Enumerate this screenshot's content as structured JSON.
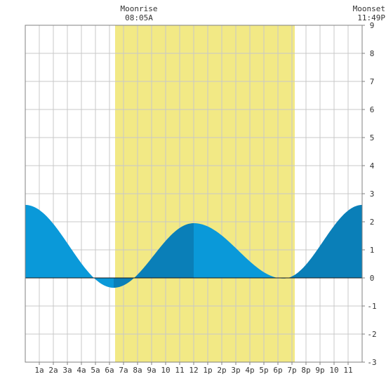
{
  "chart_data": {
    "type": "area",
    "unit_note": "y values in feet (tide height), x in hours after midnight",
    "ylim": [
      -3,
      9
    ],
    "yticks": [
      "9",
      "8",
      "7",
      "6",
      "5",
      "4",
      "3",
      "2",
      "1",
      "0",
      "-1",
      "-2",
      "-3"
    ],
    "xlim": [
      0,
      24
    ],
    "xticks": [
      {
        "hour": 1,
        "label": "1a"
      },
      {
        "hour": 2,
        "label": "2a"
      },
      {
        "hour": 3,
        "label": "3a"
      },
      {
        "hour": 4,
        "label": "4a"
      },
      {
        "hour": 5,
        "label": "5a"
      },
      {
        "hour": 6,
        "label": "6a"
      },
      {
        "hour": 7,
        "label": "7a"
      },
      {
        "hour": 8,
        "label": "8a"
      },
      {
        "hour": 9,
        "label": "9a"
      },
      {
        "hour": 10,
        "label": "10"
      },
      {
        "hour": 11,
        "label": "11"
      },
      {
        "hour": 12,
        "label": "12"
      },
      {
        "hour": 13,
        "label": "1p"
      },
      {
        "hour": 14,
        "label": "2p"
      },
      {
        "hour": 15,
        "label": "3p"
      },
      {
        "hour": 16,
        "label": "4p"
      },
      {
        "hour": 17,
        "label": "5p"
      },
      {
        "hour": 18,
        "label": "6p"
      },
      {
        "hour": 19,
        "label": "7p"
      },
      {
        "hour": 20,
        "label": "8p"
      },
      {
        "hour": 21,
        "label": "9p"
      },
      {
        "hour": 22,
        "label": "10"
      },
      {
        "hour": 23,
        "label": "11"
      }
    ],
    "grid": true,
    "daylight": {
      "start": 6.4,
      "end": 19.2,
      "color": "#f2e985"
    },
    "tide_extremes": [
      {
        "hour": 0.0,
        "height": 2.6
      },
      {
        "hour": 6.3,
        "height": -0.35
      },
      {
        "hour": 12.0,
        "height": 1.95
      },
      {
        "hour": 18.4,
        "height": -0.02
      },
      {
        "hour": 24.0,
        "height": 2.6
      }
    ],
    "band_boundaries": [
      6.3,
      12.0,
      18.4
    ],
    "colors": {
      "fill_light": "#0a99d9",
      "fill_dark": "#0a7fb8",
      "grid": "#c8c8c8",
      "frame": "#808080",
      "zero_line": "#1a1a1a"
    },
    "annotations": [
      {
        "title": "Moonrise",
        "time": "08:05A",
        "hour": 8.1
      },
      {
        "title": "Moonset",
        "time": "11:49P",
        "hour": 23.8
      }
    ]
  }
}
